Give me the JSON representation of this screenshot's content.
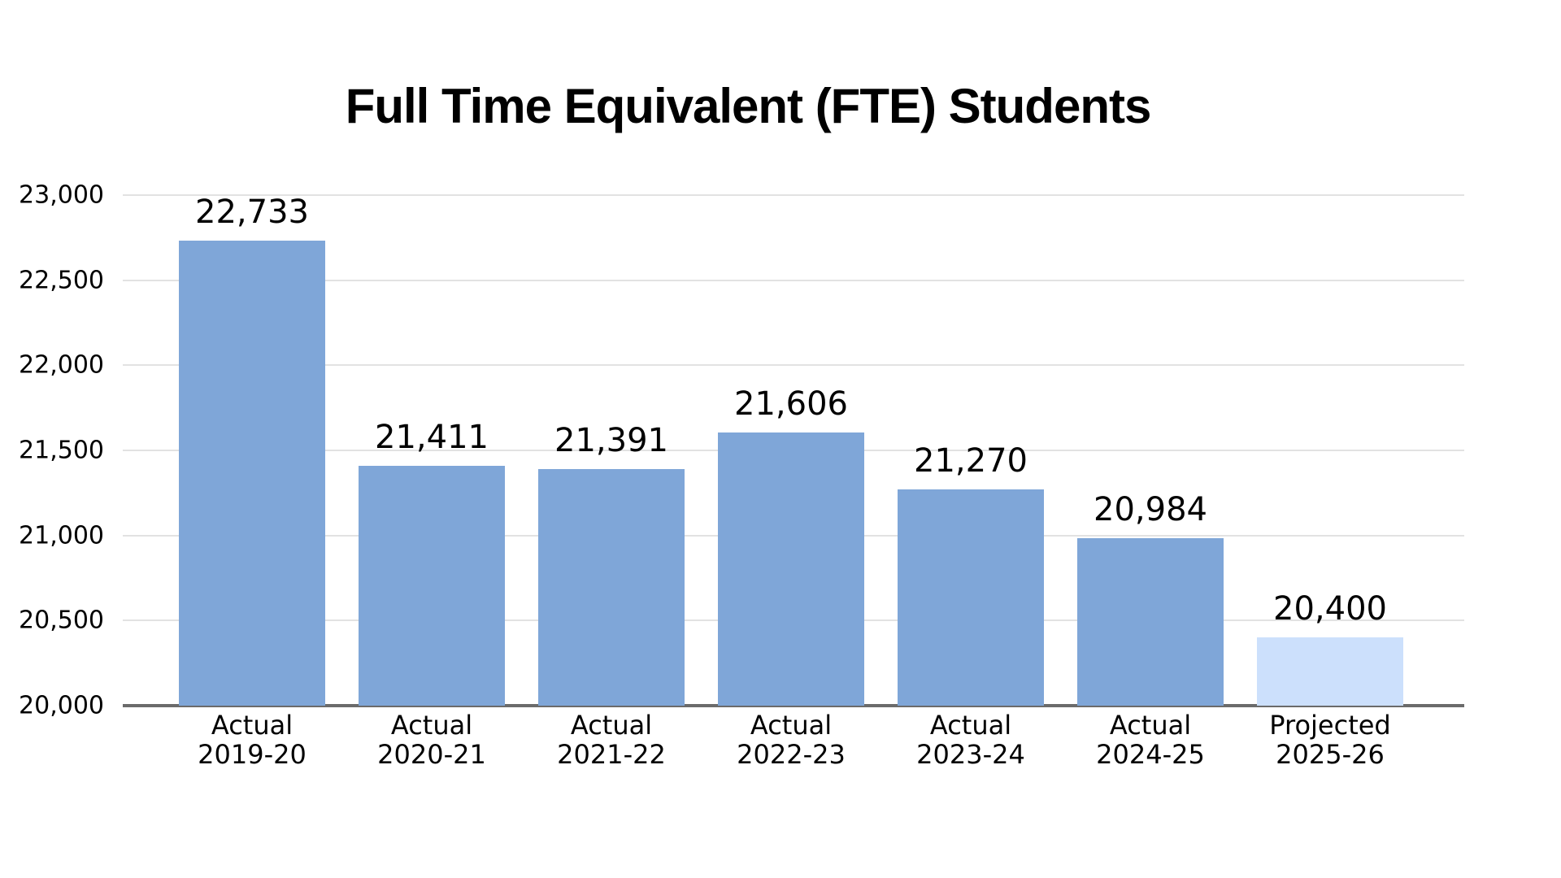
{
  "chart_data": {
    "type": "bar",
    "title": "Full Time Equivalent (FTE) Students",
    "xlabel": "",
    "ylabel": "",
    "ylim": [
      20000,
      23000
    ],
    "yticks": [
      "20,000",
      "20,500",
      "21,000",
      "21,500",
      "22,000",
      "22,500",
      "23,000"
    ],
    "ytick_values": [
      20000,
      20500,
      21000,
      21500,
      22000,
      22500,
      23000
    ],
    "grid": true,
    "legend": null,
    "categories": [
      {
        "line1": "Actual",
        "line2": "2019-20"
      },
      {
        "line1": "Actual",
        "line2": "2020-21"
      },
      {
        "line1": "Actual",
        "line2": "2021-22"
      },
      {
        "line1": "Actual",
        "line2": "2022-23"
      },
      {
        "line1": "Actual",
        "line2": "2023-24"
      },
      {
        "line1": "Actual",
        "line2": "2024-25"
      },
      {
        "line1": "Projected",
        "line2": "2025-26"
      }
    ],
    "values": [
      22733,
      21411,
      21391,
      21606,
      21270,
      20984,
      20400
    ],
    "value_labels": [
      "22,733",
      "21,411",
      "21,391",
      "21,606",
      "21,270",
      "20,984",
      "20,400"
    ],
    "colors": {
      "actual": "#7fa6d8",
      "projected": "#cce0fc",
      "axis": "#6b6b6b",
      "grid": "#e2e2e2"
    },
    "bar_status": [
      "actual",
      "actual",
      "actual",
      "actual",
      "actual",
      "actual",
      "projected"
    ]
  }
}
